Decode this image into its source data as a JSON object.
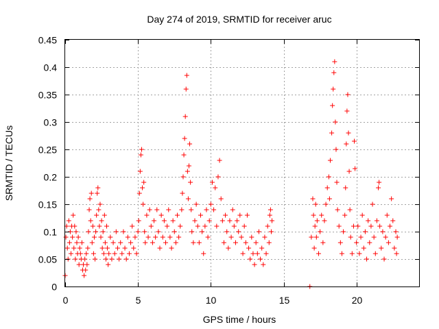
{
  "chart_data": {
    "type": "scatter",
    "title": "Day 274 of 2019, SRMTID for receiver aruc",
    "xlabel": "GPS time / hours",
    "ylabel": "SRMTID / TECUs",
    "xlim": [
      0,
      24.3
    ],
    "ylim": [
      0,
      0.45
    ],
    "xticks": [
      0,
      5,
      10,
      15,
      20
    ],
    "xtick_labels": [
      "0",
      "5",
      "10",
      "15",
      "20"
    ],
    "yticks": [
      0,
      0.05,
      0.1,
      0.15,
      0.2,
      0.25,
      0.3,
      0.35,
      0.4,
      0.45
    ],
    "ytick_labels": [
      "0",
      "0.05",
      "0.1",
      "0.15",
      "0.2",
      "0.25",
      "0.3",
      "0.35",
      "0.4",
      "0.45"
    ],
    "grid": true,
    "marker": "plus",
    "color": "#ff0000",
    "series": [
      {
        "name": "SRMTID",
        "points": [
          [
            0.0,
            0.02
          ],
          [
            0.05,
            0.09
          ],
          [
            0.1,
            0.11
          ],
          [
            0.15,
            0.07
          ],
          [
            0.2,
            0.05
          ],
          [
            0.25,
            0.12
          ],
          [
            0.3,
            0.08
          ],
          [
            0.35,
            0.1
          ],
          [
            0.4,
            0.06
          ],
          [
            0.45,
            0.11
          ],
          [
            0.5,
            0.09
          ],
          [
            0.55,
            0.13
          ],
          [
            0.6,
            0.07
          ],
          [
            0.65,
            0.11
          ],
          [
            0.7,
            0.05
          ],
          [
            0.75,
            0.1
          ],
          [
            0.8,
            0.08
          ],
          [
            0.85,
            0.06
          ],
          [
            0.9,
            0.09
          ],
          [
            0.95,
            0.04
          ],
          [
            1.0,
            0.07
          ],
          [
            1.05,
            0.06
          ],
          [
            1.1,
            0.05
          ],
          [
            1.15,
            0.08
          ],
          [
            1.2,
            0.03
          ],
          [
            1.25,
            0.04
          ],
          [
            1.3,
            0.02
          ],
          [
            1.35,
            0.05
          ],
          [
            1.4,
            0.03
          ],
          [
            1.45,
            0.06
          ],
          [
            1.5,
            0.04
          ],
          [
            1.55,
            0.07
          ],
          [
            1.6,
            0.1
          ],
          [
            1.65,
            0.14
          ],
          [
            1.7,
            0.16
          ],
          [
            1.75,
            0.12
          ],
          [
            1.8,
            0.17
          ],
          [
            1.85,
            0.08
          ],
          [
            1.9,
            0.11
          ],
          [
            1.95,
            0.06
          ],
          [
            2.0,
            0.09
          ],
          [
            2.05,
            0.05
          ],
          [
            2.1,
            0.1
          ],
          [
            2.15,
            0.13
          ],
          [
            2.2,
            0.17
          ],
          [
            2.25,
            0.18
          ],
          [
            2.3,
            0.14
          ],
          [
            2.35,
            0.11
          ],
          [
            2.4,
            0.15
          ],
          [
            2.45,
            0.09
          ],
          [
            2.5,
            0.12
          ],
          [
            2.55,
            0.07
          ],
          [
            2.6,
            0.1
          ],
          [
            2.65,
            0.06
          ],
          [
            2.7,
            0.13
          ],
          [
            2.75,
            0.08
          ],
          [
            2.8,
            0.05
          ],
          [
            2.85,
            0.11
          ],
          [
            2.9,
            0.07
          ],
          [
            2.95,
            0.04
          ],
          [
            3.0,
            0.06
          ],
          [
            3.1,
            0.09
          ],
          [
            3.2,
            0.05
          ],
          [
            3.3,
            0.08
          ],
          [
            3.4,
            0.06
          ],
          [
            3.5,
            0.1
          ],
          [
            3.6,
            0.07
          ],
          [
            3.7,
            0.05
          ],
          [
            3.8,
            0.08
          ],
          [
            3.9,
            0.06
          ],
          [
            4.0,
            0.1
          ],
          [
            4.1,
            0.07
          ],
          [
            4.2,
            0.05
          ],
          [
            4.3,
            0.09
          ],
          [
            4.4,
            0.06
          ],
          [
            4.5,
            0.08
          ],
          [
            4.6,
            0.11
          ],
          [
            4.7,
            0.07
          ],
          [
            4.8,
            0.09
          ],
          [
            4.9,
            0.06
          ],
          [
            5.0,
            0.1
          ],
          [
            5.05,
            0.12
          ],
          [
            5.1,
            0.17
          ],
          [
            5.15,
            0.21
          ],
          [
            5.2,
            0.24
          ],
          [
            5.25,
            0.25
          ],
          [
            5.3,
            0.18
          ],
          [
            5.35,
            0.15
          ],
          [
            5.4,
            0.19
          ],
          [
            5.45,
            0.1
          ],
          [
            5.5,
            0.08
          ],
          [
            5.6,
            0.13
          ],
          [
            5.7,
            0.09
          ],
          [
            5.8,
            0.14
          ],
          [
            5.9,
            0.11
          ],
          [
            6.0,
            0.08
          ],
          [
            6.1,
            0.12
          ],
          [
            6.2,
            0.09
          ],
          [
            6.3,
            0.14
          ],
          [
            6.4,
            0.1
          ],
          [
            6.5,
            0.07
          ],
          [
            6.6,
            0.13
          ],
          [
            6.7,
            0.09
          ],
          [
            6.8,
            0.12
          ],
          [
            6.9,
            0.08
          ],
          [
            7.0,
            0.11
          ],
          [
            7.1,
            0.14
          ],
          [
            7.2,
            0.09
          ],
          [
            7.3,
            0.07
          ],
          [
            7.4,
            0.12
          ],
          [
            7.5,
            0.1
          ],
          [
            7.6,
            0.08
          ],
          [
            7.7,
            0.13
          ],
          [
            7.8,
            0.09
          ],
          [
            7.9,
            0.11
          ],
          [
            8.0,
            0.14
          ],
          [
            8.05,
            0.17
          ],
          [
            8.1,
            0.2
          ],
          [
            8.15,
            0.24
          ],
          [
            8.2,
            0.27
          ],
          [
            8.25,
            0.31
          ],
          [
            8.3,
            0.36
          ],
          [
            8.35,
            0.385
          ],
          [
            8.4,
            0.21
          ],
          [
            8.45,
            0.16
          ],
          [
            8.5,
            0.22
          ],
          [
            8.55,
            0.26
          ],
          [
            8.6,
            0.19
          ],
          [
            8.65,
            0.14
          ],
          [
            8.7,
            0.1
          ],
          [
            8.8,
            0.08
          ],
          [
            8.9,
            0.12
          ],
          [
            9.0,
            0.15
          ],
          [
            9.1,
            0.11
          ],
          [
            9.2,
            0.08
          ],
          [
            9.3,
            0.13
          ],
          [
            9.4,
            0.1
          ],
          [
            9.5,
            0.06
          ],
          [
            9.6,
            0.11
          ],
          [
            9.7,
            0.14
          ],
          [
            9.8,
            0.09
          ],
          [
            9.9,
            0.12
          ],
          [
            10.0,
            0.15
          ],
          [
            10.1,
            0.19
          ],
          [
            10.2,
            0.14
          ],
          [
            10.3,
            0.18
          ],
          [
            10.4,
            0.11
          ],
          [
            10.5,
            0.2
          ],
          [
            10.6,
            0.23
          ],
          [
            10.7,
            0.16
          ],
          [
            10.8,
            0.12
          ],
          [
            10.9,
            0.08
          ],
          [
            11.0,
            0.13
          ],
          [
            11.1,
            0.1
          ],
          [
            11.2,
            0.07
          ],
          [
            11.3,
            0.12
          ],
          [
            11.4,
            0.09
          ],
          [
            11.5,
            0.14
          ],
          [
            11.6,
            0.11
          ],
          [
            11.7,
            0.08
          ],
          [
            11.8,
            0.12
          ],
          [
            11.9,
            0.1
          ],
          [
            12.0,
            0.13
          ],
          [
            12.1,
            0.09
          ],
          [
            12.2,
            0.06
          ],
          [
            12.3,
            0.11
          ],
          [
            12.4,
            0.08
          ],
          [
            12.5,
            0.13
          ],
          [
            12.6,
            0.07
          ],
          [
            12.7,
            0.05
          ],
          [
            12.8,
            0.09
          ],
          [
            12.9,
            0.06
          ],
          [
            13.0,
            0.04
          ],
          [
            13.1,
            0.08
          ],
          [
            13.2,
            0.06
          ],
          [
            13.3,
            0.1
          ],
          [
            13.4,
            0.05
          ],
          [
            13.5,
            0.07
          ],
          [
            13.6,
            0.04
          ],
          [
            13.7,
            0.09
          ],
          [
            13.8,
            0.06
          ],
          [
            13.9,
            0.11
          ],
          [
            14.0,
            0.08
          ],
          [
            14.05,
            0.13
          ],
          [
            14.1,
            0.14
          ],
          [
            14.15,
            0.1
          ],
          [
            14.2,
            0.12
          ],
          [
            16.8,
            0.0
          ],
          [
            16.9,
            0.09
          ],
          [
            17.0,
            0.16
          ],
          [
            17.05,
            0.13
          ],
          [
            17.1,
            0.07
          ],
          [
            17.15,
            0.11
          ],
          [
            17.2,
            0.15
          ],
          [
            17.25,
            0.09
          ],
          [
            17.3,
            0.12
          ],
          [
            17.4,
            0.06
          ],
          [
            17.5,
            0.1
          ],
          [
            17.6,
            0.13
          ],
          [
            17.7,
            0.08
          ],
          [
            17.8,
            0.12
          ],
          [
            17.9,
            0.15
          ],
          [
            18.0,
            0.18
          ],
          [
            18.1,
            0.2
          ],
          [
            18.15,
            0.16
          ],
          [
            18.2,
            0.23
          ],
          [
            18.3,
            0.28
          ],
          [
            18.35,
            0.33
          ],
          [
            18.4,
            0.36
          ],
          [
            18.45,
            0.39
          ],
          [
            18.5,
            0.41
          ],
          [
            18.55,
            0.3
          ],
          [
            18.6,
            0.25
          ],
          [
            18.65,
            0.19
          ],
          [
            18.7,
            0.14
          ],
          [
            18.8,
            0.11
          ],
          [
            18.9,
            0.08
          ],
          [
            19.0,
            0.06
          ],
          [
            19.1,
            0.1
          ],
          [
            19.2,
            0.13
          ],
          [
            19.25,
            0.18
          ],
          [
            19.3,
            0.26
          ],
          [
            19.35,
            0.32
          ],
          [
            19.4,
            0.35
          ],
          [
            19.45,
            0.28
          ],
          [
            19.5,
            0.21
          ],
          [
            19.55,
            0.14
          ],
          [
            19.6,
            0.09
          ],
          [
            19.7,
            0.06
          ],
          [
            19.8,
            0.11
          ],
          [
            19.85,
            0.265
          ],
          [
            19.9,
            0.215
          ],
          [
            20.0,
            0.08
          ],
          [
            20.1,
            0.11
          ],
          [
            20.2,
            0.06
          ],
          [
            20.3,
            0.09
          ],
          [
            20.4,
            0.13
          ],
          [
            20.5,
            0.07
          ],
          [
            20.6,
            0.1
          ],
          [
            20.7,
            0.05
          ],
          [
            20.8,
            0.12
          ],
          [
            20.9,
            0.08
          ],
          [
            21.0,
            0.11
          ],
          [
            21.1,
            0.15
          ],
          [
            21.2,
            0.09
          ],
          [
            21.3,
            0.06
          ],
          [
            21.4,
            0.12
          ],
          [
            21.5,
            0.18
          ],
          [
            21.55,
            0.19
          ],
          [
            21.6,
            0.11
          ],
          [
            21.7,
            0.07
          ],
          [
            21.8,
            0.1
          ],
          [
            21.9,
            0.05
          ],
          [
            22.0,
            0.09
          ],
          [
            22.1,
            0.13
          ],
          [
            22.2,
            0.08
          ],
          [
            22.3,
            0.11
          ],
          [
            22.4,
            0.16
          ],
          [
            22.5,
            0.12
          ],
          [
            22.6,
            0.07
          ],
          [
            22.7,
            0.1
          ],
          [
            22.75,
            0.06
          ],
          [
            22.8,
            0.09
          ]
        ]
      }
    ]
  }
}
